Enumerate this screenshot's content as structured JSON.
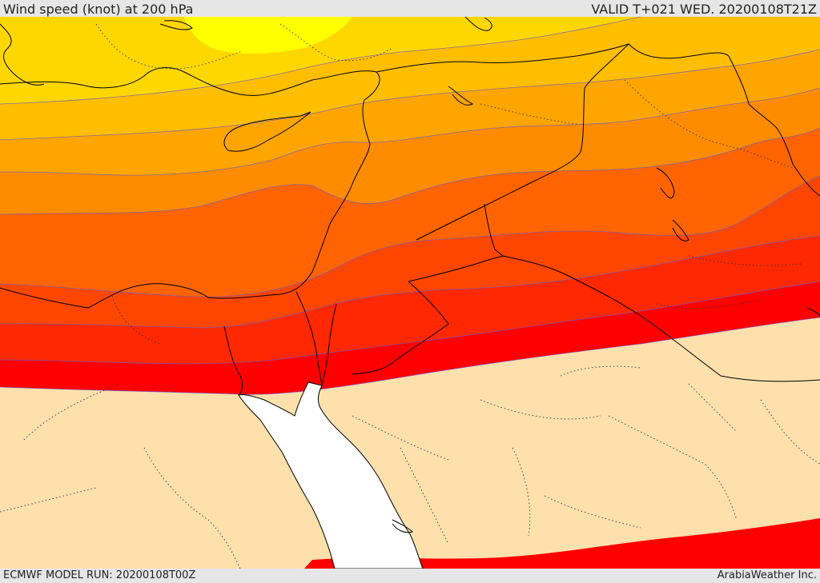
{
  "header": {
    "title": "Wind speed (knot) at 200 hPa",
    "valid": "VALID T+021 WED. 20200108T21Z"
  },
  "footer": {
    "model_run": "ECMWF MODEL RUN: 20200108T00Z",
    "credit": "ArabiaWeather Inc."
  },
  "map": {
    "colors": {
      "yellow": "#ffff00",
      "gold": "#ffd700",
      "amber": "#ffbe00",
      "orange_light": "#ffa500",
      "orange": "#ff8c00",
      "orange_dark": "#ff6400",
      "red_orange": "#ff4600",
      "red_light": "#ff2800",
      "red": "#ff0000",
      "calm": "#fde0ac",
      "sea": "#ffffff"
    }
  }
}
